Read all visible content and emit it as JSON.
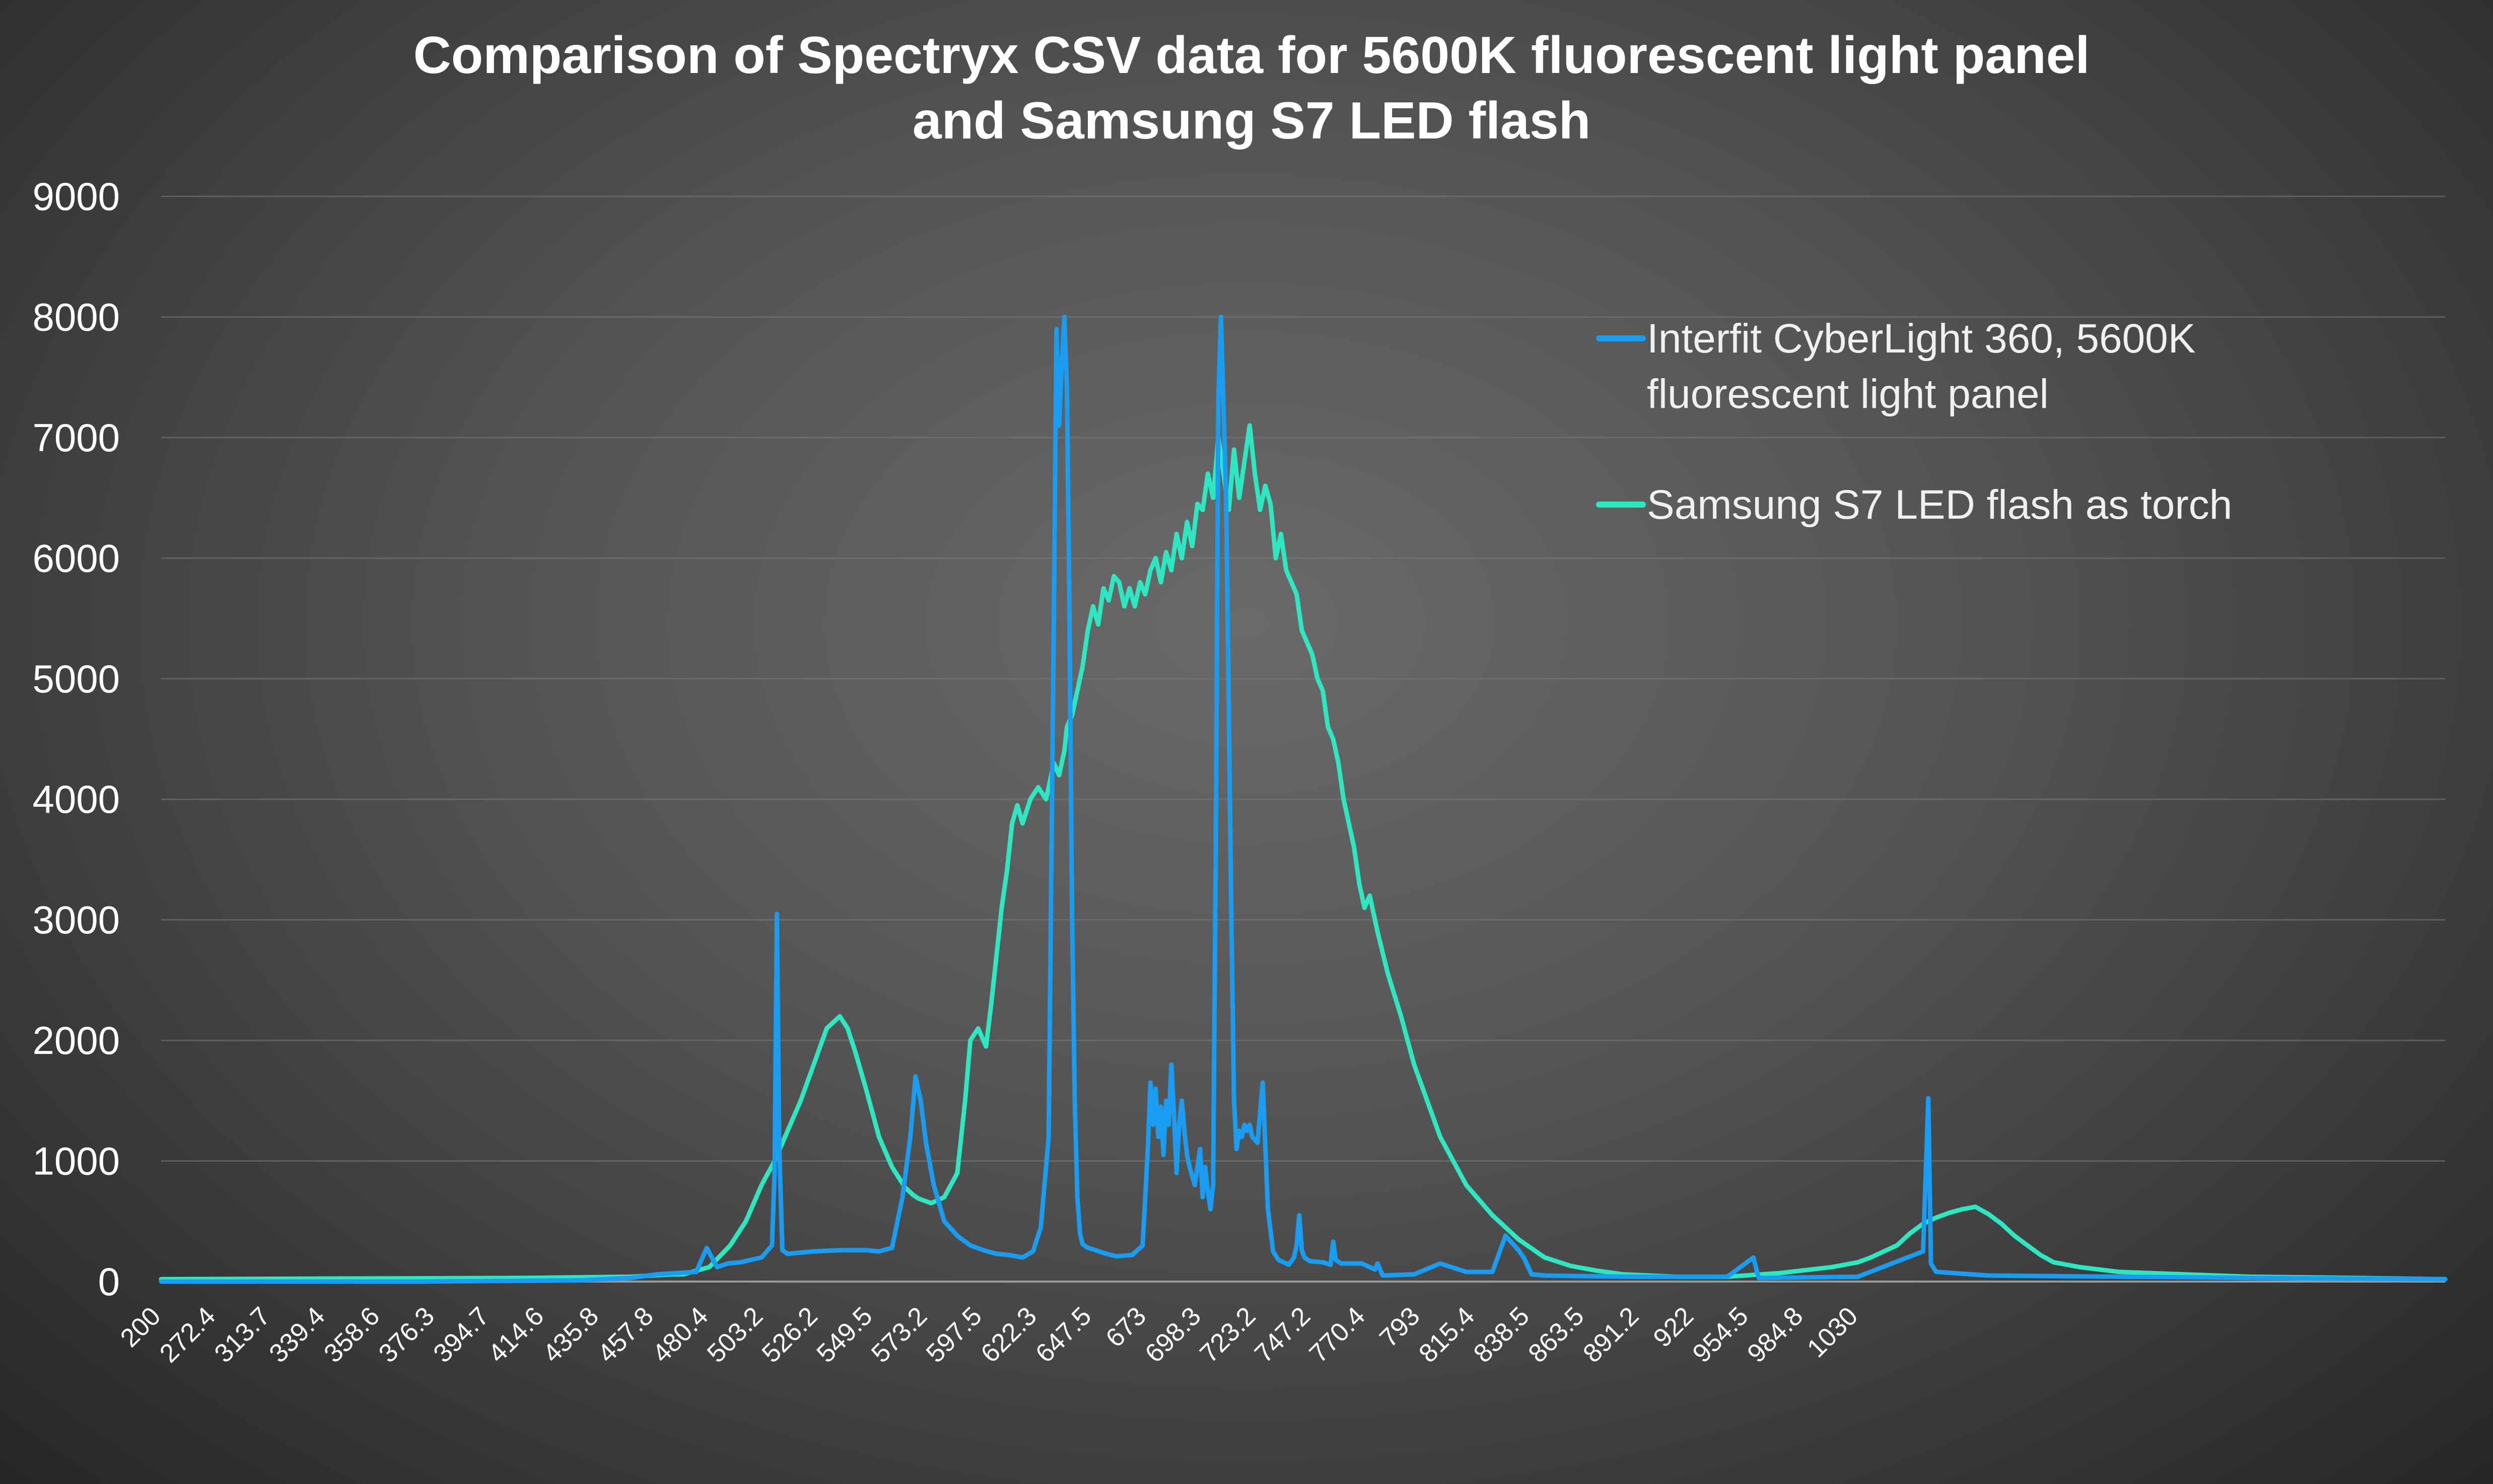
{
  "chart_data": {
    "type": "line",
    "title": [
      "Comparison of Spectryx CSV data for 5600K fluorescent light panel",
      "and Samsung S7 LED flash"
    ],
    "xlabel": "",
    "ylabel": "",
    "ylim": [
      0,
      9000
    ],
    "yticks": [
      0,
      1000,
      2000,
      3000,
      4000,
      5000,
      6000,
      7000,
      8000,
      9000
    ],
    "xlim": [
      200,
      1075
    ],
    "xtick_labels": [
      "200",
      "272.4",
      "313.7",
      "339.4",
      "358.6",
      "376.3",
      "394.7",
      "414.6",
      "435.8",
      "457.8",
      "480.4",
      "503.2",
      "526.2",
      "549.5",
      "573.2",
      "597.5",
      "622.3",
      "647.5",
      "673",
      "698.3",
      "723.2",
      "747.2",
      "770.4",
      "793",
      "815.4",
      "838.5",
      "863.5",
      "891.2",
      "922",
      "954.5",
      "984.8",
      "1030"
    ],
    "grid": true,
    "legend_position": "top-right",
    "legend": [
      {
        "lines": [
          "Interfit CyberLight 360, 5600K",
          "fluorescent light panel"
        ],
        "color": "#1a9cf0"
      },
      {
        "lines": [
          "Samsung S7 LED flash as torch"
        ],
        "color": "#2ee6bf"
      }
    ],
    "series": [
      {
        "name": "Interfit CyberLight 360, 5600K fluorescent light panel",
        "color": "#1a9cf0",
        "x": [
          200,
          300,
          360,
          380,
          390,
          405,
          409,
          413,
          417,
          422,
          426,
          430,
          434,
          435,
          435.9,
          436.8,
          438,
          440,
          450,
          460,
          470,
          475,
          480,
          484,
          487,
          489,
          491,
          493,
          496,
          500,
          505,
          510,
          515,
          520,
          525,
          530,
          534,
          537,
          540,
          542,
          543,
          544,
          545,
          546,
          547,
          548,
          549,
          550,
          551,
          552,
          553,
          555,
          558,
          562,
          566,
          572,
          576,
          578,
          579,
          580,
          581,
          582,
          583,
          584,
          585,
          586,
          587,
          588,
          589,
          590,
          591,
          592,
          593,
          594,
          596,
          598,
          599,
          600,
          601,
          602,
          603,
          604,
          605,
          606,
          608,
          610,
          611,
          612,
          613,
          614,
          615,
          616,
          617,
          618,
          620,
          622,
          624,
          626,
          628,
          630,
          632,
          634,
          635,
          636,
          637,
          638,
          640,
          645,
          648,
          649,
          650,
          652,
          660,
          665,
          666,
          668,
          680,
          690,
          700,
          710,
          715,
          720,
          722,
          725,
          730,
          760,
          800,
          810,
          812,
          815,
          850,
          875,
          877,
          878,
          880,
          900,
          1000,
          1075
        ],
        "y": [
          0,
          0,
          10,
          30,
          60,
          80,
          280,
          120,
          150,
          160,
          180,
          200,
          300,
          900,
          3050,
          1100,
          260,
          230,
          250,
          260,
          260,
          250,
          280,
          700,
          1200,
          1700,
          1500,
          1150,
          800,
          500,
          380,
          300,
          260,
          230,
          220,
          200,
          250,
          450,
          1200,
          5500,
          7900,
          7100,
          7600,
          8000,
          7400,
          5500,
          3000,
          1500,
          700,
          400,
          310,
          280,
          260,
          230,
          210,
          220,
          300,
          1100,
          1650,
          1300,
          1600,
          1200,
          1450,
          1050,
          1500,
          1300,
          1800,
          1400,
          900,
          1300,
          1500,
          1250,
          1050,
          950,
          800,
          1100,
          700,
          950,
          750,
          600,
          800,
          3500,
          7300,
          8000,
          6500,
          3000,
          1500,
          1100,
          1250,
          1200,
          1300,
          1250,
          1300,
          1200,
          1150,
          1650,
          600,
          250,
          180,
          160,
          140,
          200,
          300,
          550,
          260,
          200,
          170,
          160,
          140,
          330,
          180,
          150,
          150,
          100,
          150,
          50,
          60,
          150,
          80,
          80,
          380,
          260,
          200,
          60,
          50,
          40,
          40,
          200,
          30,
          30,
          40,
          250,
          1520,
          150,
          80,
          50,
          30,
          20
        ],
        "x_min": 200,
        "x_max": 1075
      },
      {
        "name": "Samsung S7 LED flash as torch",
        "color": "#2ee6bf",
        "x": [
          200,
          340,
          380,
          396,
          400,
          410,
          418,
          424,
          430,
          435,
          440,
          445,
          450,
          455,
          460,
          463,
          466,
          470,
          475,
          480,
          485,
          488,
          490,
          495,
          500,
          505,
          508,
          510,
          513,
          516,
          518,
          520,
          522,
          524,
          526,
          528,
          530,
          533,
          536,
          539,
          542,
          544,
          546,
          547,
          549,
          551,
          553,
          555,
          557,
          559,
          561,
          563,
          565,
          567,
          569,
          571,
          573,
          575,
          577,
          579,
          581,
          583,
          585,
          587,
          589,
          591,
          593,
          595,
          597,
          599,
          601,
          603,
          605,
          607,
          609,
          611,
          613,
          615,
          617,
          619,
          621,
          623,
          625,
          627,
          629,
          631,
          633,
          635,
          637,
          639,
          641,
          643,
          645,
          647,
          649,
          651,
          653,
          655,
          657,
          659,
          661,
          663,
          666,
          670,
          675,
          680,
          685,
          690,
          695,
          700,
          710,
          720,
          730,
          740,
          750,
          760,
          780,
          800,
          820,
          840,
          850,
          855,
          860,
          865,
          870,
          875,
          880,
          885,
          890,
          895,
          900,
          905,
          910,
          915,
          920,
          925,
          935,
          950,
          975,
          1000,
          1040,
          1075
        ],
        "y": [
          20,
          30,
          40,
          60,
          60,
          120,
          300,
          500,
          800,
          1000,
          1250,
          1500,
          1800,
          2100,
          2200,
          2100,
          1900,
          1600,
          1200,
          950,
          780,
          720,
          690,
          650,
          700,
          900,
          1500,
          2000,
          2100,
          1950,
          2300,
          2700,
          3100,
          3400,
          3800,
          3950,
          3800,
          4000,
          4100,
          4000,
          4300,
          4200,
          4400,
          4600,
          4700,
          4900,
          5100,
          5400,
          5600,
          5450,
          5750,
          5650,
          5850,
          5800,
          5600,
          5750,
          5600,
          5800,
          5700,
          5900,
          6000,
          5800,
          6050,
          5900,
          6200,
          6000,
          6300,
          6100,
          6450,
          6400,
          6700,
          6500,
          7000,
          6700,
          6400,
          6900,
          6500,
          6800,
          7100,
          6700,
          6400,
          6600,
          6450,
          6000,
          6200,
          5900,
          5800,
          5700,
          5400,
          5300,
          5200,
          5000,
          4900,
          4600,
          4500,
          4300,
          4000,
          3800,
          3600,
          3300,
          3100,
          3200,
          2900,
          2550,
          2200,
          1800,
          1500,
          1200,
          1000,
          800,
          550,
          350,
          200,
          130,
          90,
          60,
          40,
          40,
          70,
          120,
          160,
          200,
          250,
          300,
          400,
          480,
          530,
          570,
          600,
          620,
          560,
          480,
          380,
          300,
          220,
          160,
          120,
          80,
          60,
          40,
          30,
          20
        ],
        "x_min": 200,
        "x_max": 1075
      }
    ]
  }
}
